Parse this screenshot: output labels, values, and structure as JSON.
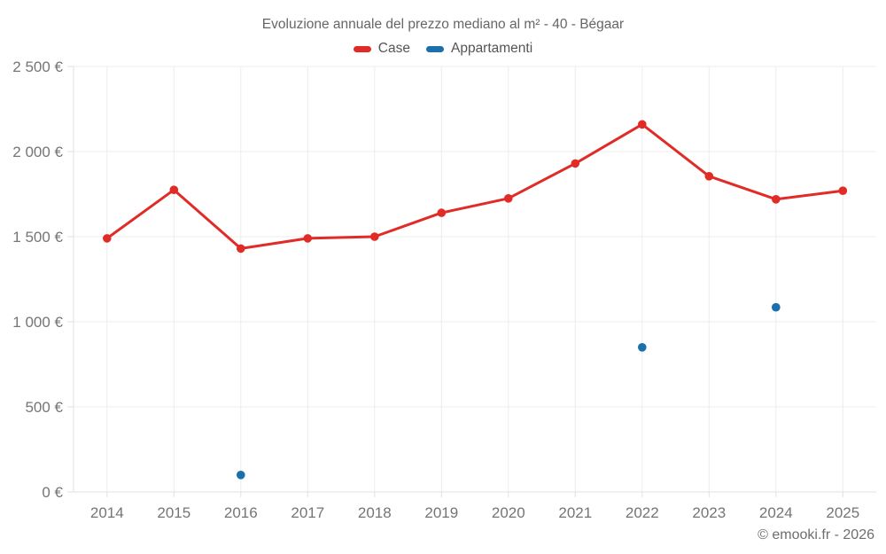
{
  "chart_data": {
    "type": "line",
    "title": "Evoluzione annuale del prezzo mediano al m² - 40 - Bégaar",
    "categories": [
      "2014",
      "2015",
      "2016",
      "2017",
      "2018",
      "2019",
      "2020",
      "2021",
      "2022",
      "2023",
      "2024",
      "2025"
    ],
    "series": [
      {
        "name": "Case",
        "color": "#e02b27",
        "draw_line": true,
        "values": [
          1490,
          1775,
          1430,
          1490,
          1500,
          1640,
          1725,
          1930,
          2160,
          1855,
          1720,
          1770
        ]
      },
      {
        "name": "Appartamenti",
        "color": "#1b6fab",
        "draw_line": true,
        "values": [
          null,
          null,
          100,
          null,
          null,
          null,
          null,
          null,
          850,
          null,
          1085,
          null
        ]
      }
    ],
    "xlabel": "",
    "ylabel": "",
    "ylim": [
      0,
      2500
    ],
    "yticks": [
      {
        "value": 0,
        "label": "0 €"
      },
      {
        "value": 500,
        "label": "500 €"
      },
      {
        "value": 1000,
        "label": "1 000 €"
      },
      {
        "value": 1500,
        "label": "1 500 €"
      },
      {
        "value": 2000,
        "label": "2 000 €"
      },
      {
        "value": 2500,
        "label": "2 500 €"
      }
    ],
    "grid": true,
    "legend_position": "top"
  },
  "footer": {
    "credit": "© emooki.fr - 2026"
  },
  "colors": {
    "background": "#ffffff",
    "gridline": "#ececec",
    "axis": "#e0e0e0",
    "axis_text": "#757575",
    "title_text": "#666666",
    "legend_text": "#555555",
    "footer_text": "#6e6e6e",
    "case_red": "#e02b27",
    "appartamenti_blue": "#1b6fab"
  }
}
